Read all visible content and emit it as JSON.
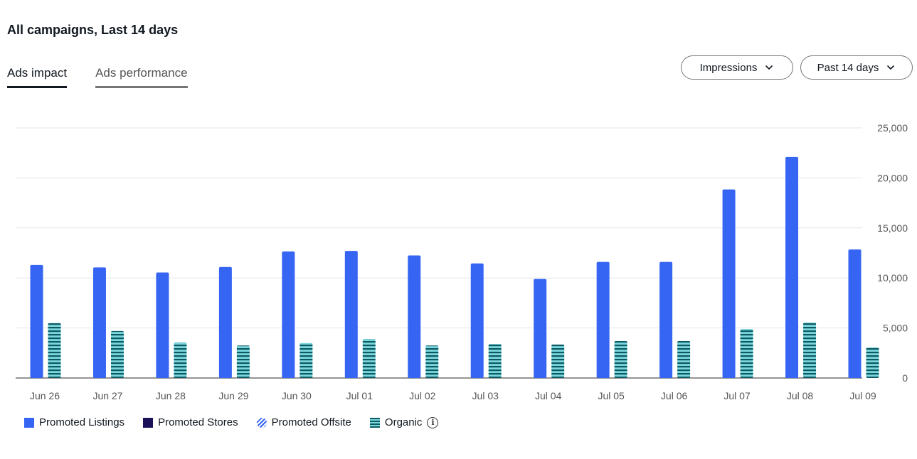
{
  "header": {
    "title": "All campaigns, Last 14 days"
  },
  "tabs": [
    {
      "label": "Ads impact",
      "active": true
    },
    {
      "label": "Ads performance",
      "active": false
    }
  ],
  "controls": {
    "metric_label": "Impressions",
    "range_label": "Past 14 days",
    "chevron_icon": "chevron-down-icon"
  },
  "legend": {
    "items": [
      {
        "label": "Promoted Listings",
        "color": "#3665f3"
      },
      {
        "label": "Promoted Stores",
        "color": "#1a1158"
      },
      {
        "label": "Promoted Offsite",
        "color": "#3665f3"
      },
      {
        "label": "Organic",
        "color": "#7ad7dd"
      }
    ],
    "info_icon": "info-icon"
  },
  "chart_data": {
    "type": "bar",
    "categories": [
      "Jun 26",
      "Jun 27",
      "Jun 28",
      "Jun 29",
      "Jun 30",
      "Jul 01",
      "Jul 02",
      "Jul 03",
      "Jul 04",
      "Jul 05",
      "Jul 06",
      "Jul 07",
      "Jul 08",
      "Jul 09"
    ],
    "series": [
      {
        "name": "Promoted Listings",
        "color": "#3665f3",
        "pattern": "solid",
        "values": [
          11300,
          11050,
          10550,
          11100,
          12650,
          12700,
          12250,
          11450,
          9900,
          11600,
          11600,
          18850,
          22100,
          12850
        ]
      },
      {
        "name": "Organic",
        "color": "#7ad7dd",
        "pattern": "striped",
        "values": [
          5500,
          4700,
          3550,
          3250,
          3500,
          3900,
          3250,
          3400,
          3350,
          3700,
          3700,
          4900,
          5550,
          3050
        ]
      }
    ],
    "y_ticks": [
      "0",
      "5,000",
      "10,000",
      "15,000",
      "20,000",
      "25,000"
    ],
    "ylim": [
      0,
      25000
    ],
    "y_axis_side": "right",
    "grid": true,
    "legend_position": "bottom-left"
  }
}
